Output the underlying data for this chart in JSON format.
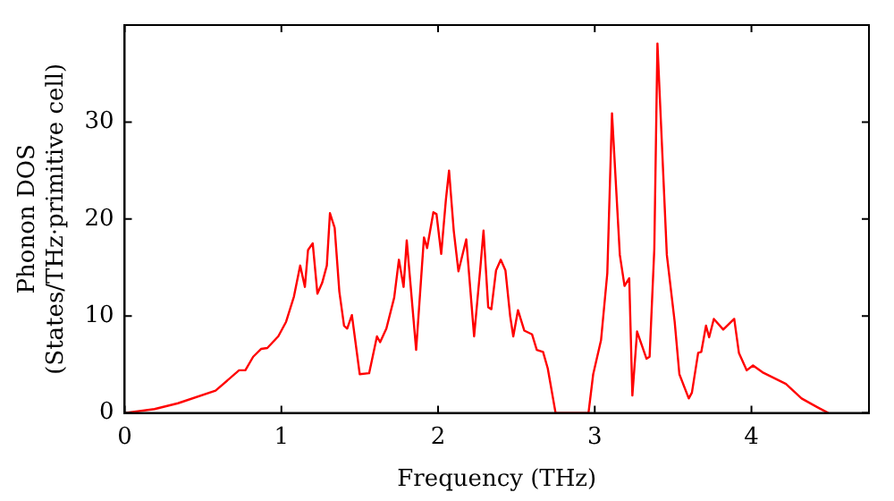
{
  "chart_data": {
    "type": "line",
    "xlabel": "Frequency (THz)",
    "ylabel": "Phonon DOS\n(States/THz·primitive cell)",
    "xlim": [
      0,
      4.75
    ],
    "ylim": [
      0,
      40
    ],
    "xticks": [
      0,
      1,
      2,
      3,
      4
    ],
    "yticks": [
      0,
      10,
      20,
      30
    ],
    "grid": false,
    "legend": false,
    "marker": "none",
    "line_style": "solid",
    "series": [
      {
        "color": "#ff0000",
        "x": [
          0,
          0.19,
          0.34,
          0.58,
          0.73,
          0.77,
          0.82,
          0.87,
          0.91,
          0.98,
          1.03,
          1.08,
          1.12,
          1.15,
          1.17,
          1.2,
          1.23,
          1.26,
          1.29,
          1.31,
          1.34,
          1.37,
          1.4,
          1.42,
          1.45,
          1.5,
          1.56,
          1.61,
          1.63,
          1.67,
          1.72,
          1.75,
          1.78,
          1.8,
          1.86,
          1.91,
          1.93,
          1.97,
          1.99,
          2.02,
          2.05,
          2.07,
          2.1,
          2.13,
          2.18,
          2.23,
          2.27,
          2.29,
          2.32,
          2.34,
          2.37,
          2.4,
          2.43,
          2.46,
          2.48,
          2.51,
          2.55,
          2.6,
          2.63,
          2.67,
          2.7,
          2.75,
          2.96,
          2.99,
          3.04,
          3.08,
          3.11,
          3.16,
          3.19,
          3.22,
          3.24,
          3.27,
          3.33,
          3.35,
          3.38,
          3.4,
          3.46,
          3.51,
          3.54,
          3.6,
          3.62,
          3.66,
          3.68,
          3.71,
          3.73,
          3.76,
          3.82,
          3.89,
          3.92,
          3.97,
          4.01,
          4.07,
          4.22,
          4.32,
          4.42,
          4.49
        ],
        "values": [
          0,
          0.4,
          1,
          2.3,
          4.4,
          4.4,
          5.8,
          6.6,
          6.7,
          7.9,
          9.4,
          12,
          15.2,
          13,
          16.8,
          17.5,
          12.3,
          13.4,
          15.2,
          20.6,
          19.1,
          12.5,
          9,
          8.7,
          10.1,
          4,
          4.1,
          7.9,
          7.3,
          8.7,
          11.9,
          15.8,
          13,
          17.8,
          6.5,
          18.1,
          17,
          20.7,
          20.5,
          16.4,
          22,
          25,
          18.8,
          14.6,
          17.9,
          7.9,
          15,
          18.8,
          10.9,
          10.7,
          14.7,
          15.8,
          14.7,
          10,
          7.9,
          10.6,
          8.5,
          8.1,
          6.5,
          6.3,
          4.6,
          0,
          0,
          4,
          7.5,
          14.4,
          30.9,
          16.3,
          13.1,
          13.9,
          1.8,
          8.4,
          5.6,
          5.8,
          16.9,
          38.1,
          16.3,
          9.4,
          4,
          1.5,
          2.1,
          6.2,
          6.3,
          9,
          7.8,
          9.7,
          8.6,
          9.7,
          6.2,
          4.4,
          4.9,
          4.2,
          3,
          1.5,
          0.6,
          0
        ]
      }
    ]
  }
}
